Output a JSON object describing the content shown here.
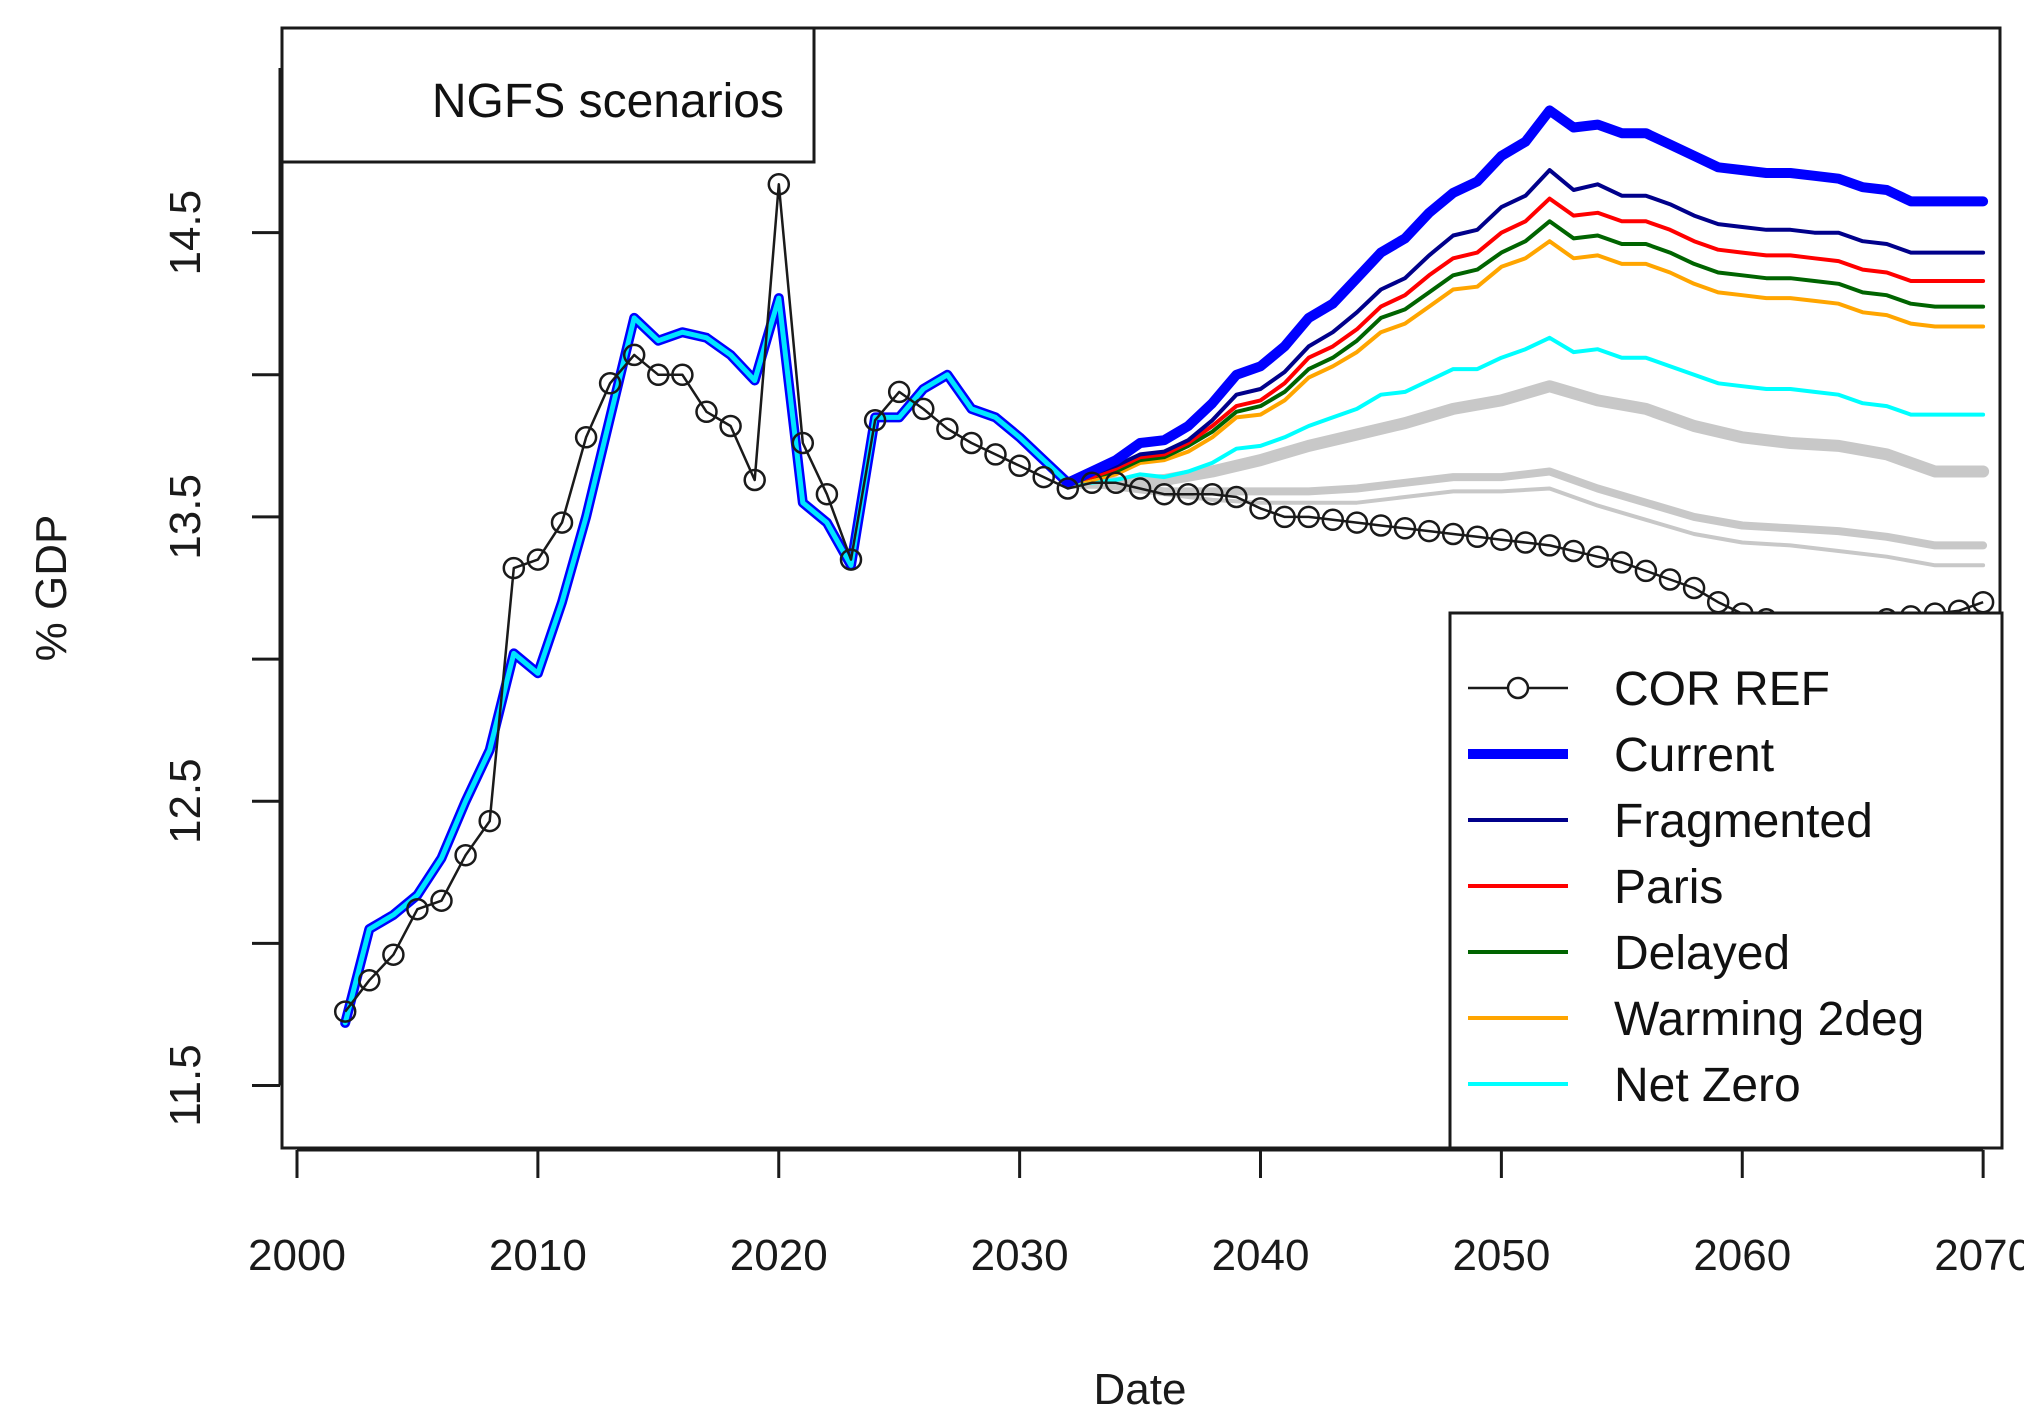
{
  "chart_data": {
    "type": "line",
    "title": "NGFS scenarios",
    "xlabel": "Date",
    "ylabel": "% GDP",
    "xlim": [
      2000,
      2070
    ],
    "ylim": [
      11.5,
      15.0
    ],
    "xticks": [
      2000,
      2010,
      2020,
      2030,
      2040,
      2050,
      2060,
      2070
    ],
    "yticks": [
      11.5,
      12.0,
      12.5,
      13.0,
      13.5,
      14.0,
      14.5
    ],
    "ytick_labels": [
      "11.5",
      "",
      "12.5",
      "",
      "13.5",
      "",
      "14.5"
    ],
    "grid": false,
    "legend_position": "bottom-right",
    "history": {
      "x": [
        2002,
        2003,
        2004,
        2005,
        2006,
        2007,
        2008,
        2009,
        2010,
        2011,
        2012,
        2013,
        2014,
        2015,
        2016,
        2017,
        2018,
        2019,
        2020,
        2021,
        2022,
        2023,
        2024,
        2025,
        2026,
        2027,
        2028,
        2029,
        2030,
        2031,
        2032
      ],
      "values": [
        11.72,
        12.05,
        12.1,
        12.17,
        12.3,
        12.5,
        12.68,
        13.02,
        12.95,
        13.2,
        13.5,
        13.85,
        14.2,
        14.12,
        14.15,
        14.13,
        14.07,
        13.98,
        14.27,
        13.55,
        13.48,
        13.33,
        13.85,
        13.85,
        13.95,
        14.0,
        13.88,
        13.85,
        13.78,
        13.7,
        13.62
      ]
    },
    "series": [
      {
        "name": "COR REF",
        "color": "#1a1a1a",
        "marker": "circle",
        "x": [
          2002,
          2003,
          2004,
          2005,
          2006,
          2007,
          2008,
          2009,
          2010,
          2011,
          2012,
          2013,
          2014,
          2015,
          2016,
          2017,
          2018,
          2019,
          2020,
          2021,
          2022,
          2023,
          2024,
          2025,
          2026,
          2027,
          2028,
          2029,
          2030,
          2031,
          2032,
          2033,
          2034,
          2035,
          2036,
          2037,
          2038,
          2039,
          2040,
          2041,
          2042,
          2043,
          2044,
          2045,
          2046,
          2047,
          2048,
          2049,
          2050,
          2051,
          2052,
          2053,
          2054,
          2055,
          2056,
          2057,
          2058,
          2059,
          2060,
          2061,
          2062,
          2063,
          2064,
          2065,
          2066,
          2067,
          2068,
          2069,
          2070
        ],
        "values": [
          11.76,
          11.87,
          11.96,
          12.12,
          12.15,
          12.31,
          12.43,
          13.32,
          13.35,
          13.48,
          13.78,
          13.97,
          14.07,
          14.0,
          14.0,
          13.87,
          13.82,
          13.63,
          14.67,
          13.76,
          13.58,
          13.35,
          13.84,
          13.94,
          13.88,
          13.81,
          13.76,
          13.72,
          13.68,
          13.64,
          13.6,
          13.62,
          13.62,
          13.6,
          13.58,
          13.58,
          13.58,
          13.57,
          13.53,
          13.5,
          13.5,
          13.49,
          13.48,
          13.47,
          13.46,
          13.45,
          13.44,
          13.43,
          13.42,
          13.41,
          13.4,
          13.38,
          13.36,
          13.34,
          13.31,
          13.28,
          13.25,
          13.2,
          13.16,
          13.14,
          13.12,
          13.11,
          13.11,
          13.12,
          13.14,
          13.15,
          13.16,
          13.17,
          13.2
        ]
      },
      {
        "name": "Current",
        "color": "#0000ff",
        "width": 10,
        "x": [
          2032,
          2033,
          2034,
          2035,
          2036,
          2037,
          2038,
          2039,
          2040,
          2041,
          2042,
          2043,
          2044,
          2045,
          2046,
          2047,
          2048,
          2049,
          2050,
          2051,
          2052,
          2053,
          2054,
          2055,
          2056,
          2057,
          2058,
          2059,
          2060,
          2061,
          2062,
          2063,
          2064,
          2065,
          2066,
          2067,
          2068,
          2069,
          2070
        ],
        "values": [
          13.62,
          13.66,
          13.7,
          13.76,
          13.77,
          13.82,
          13.9,
          14.0,
          14.03,
          14.1,
          14.2,
          14.25,
          14.34,
          14.43,
          14.48,
          14.57,
          14.64,
          14.68,
          14.77,
          14.82,
          14.93,
          14.87,
          14.88,
          14.85,
          14.85,
          14.81,
          14.77,
          14.73,
          14.72,
          14.71,
          14.71,
          14.7,
          14.69,
          14.66,
          14.65,
          14.61,
          14.61,
          14.61,
          14.61
        ]
      },
      {
        "name": "Fragmented",
        "color": "#00008b",
        "width": 4,
        "x": [
          2032,
          2033,
          2034,
          2035,
          2036,
          2037,
          2038,
          2039,
          2040,
          2041,
          2042,
          2043,
          2044,
          2045,
          2046,
          2047,
          2048,
          2049,
          2050,
          2051,
          2052,
          2053,
          2054,
          2055,
          2056,
          2057,
          2058,
          2059,
          2060,
          2061,
          2062,
          2063,
          2064,
          2065,
          2066,
          2067,
          2068,
          2069,
          2070
        ],
        "values": [
          13.62,
          13.65,
          13.68,
          13.72,
          13.73,
          13.77,
          13.84,
          13.93,
          13.95,
          14.01,
          14.1,
          14.15,
          14.22,
          14.3,
          14.34,
          14.42,
          14.49,
          14.51,
          14.59,
          14.63,
          14.72,
          14.65,
          14.67,
          14.63,
          14.63,
          14.6,
          14.56,
          14.53,
          14.52,
          14.51,
          14.51,
          14.5,
          14.5,
          14.47,
          14.46,
          14.43,
          14.43,
          14.43,
          14.43
        ]
      },
      {
        "name": "Paris",
        "color": "#ff0000",
        "width": 4,
        "x": [
          2032,
          2033,
          2034,
          2035,
          2036,
          2037,
          2038,
          2039,
          2040,
          2041,
          2042,
          2043,
          2044,
          2045,
          2046,
          2047,
          2048,
          2049,
          2050,
          2051,
          2052,
          2053,
          2054,
          2055,
          2056,
          2057,
          2058,
          2059,
          2060,
          2061,
          2062,
          2063,
          2064,
          2065,
          2066,
          2067,
          2068,
          2069,
          2070
        ],
        "values": [
          13.62,
          13.64,
          13.67,
          13.71,
          13.72,
          13.76,
          13.82,
          13.89,
          13.91,
          13.97,
          14.06,
          14.1,
          14.16,
          14.24,
          14.28,
          14.35,
          14.41,
          14.43,
          14.5,
          14.54,
          14.62,
          14.56,
          14.57,
          14.54,
          14.54,
          14.51,
          14.47,
          14.44,
          14.43,
          14.42,
          14.42,
          14.41,
          14.4,
          14.37,
          14.36,
          14.33,
          14.33,
          14.33,
          14.33
        ]
      },
      {
        "name": "Delayed",
        "color": "#006400",
        "width": 4,
        "x": [
          2032,
          2033,
          2034,
          2035,
          2036,
          2037,
          2038,
          2039,
          2040,
          2041,
          2042,
          2043,
          2044,
          2045,
          2046,
          2047,
          2048,
          2049,
          2050,
          2051,
          2052,
          2053,
          2054,
          2055,
          2056,
          2057,
          2058,
          2059,
          2060,
          2061,
          2062,
          2063,
          2064,
          2065,
          2066,
          2067,
          2068,
          2069,
          2070
        ],
        "values": [
          13.62,
          13.64,
          13.66,
          13.7,
          13.71,
          13.75,
          13.8,
          13.87,
          13.89,
          13.94,
          14.02,
          14.06,
          14.12,
          14.2,
          14.23,
          14.29,
          14.35,
          14.37,
          14.43,
          14.47,
          14.54,
          14.48,
          14.49,
          14.46,
          14.46,
          14.43,
          14.39,
          14.36,
          14.35,
          14.34,
          14.34,
          14.33,
          14.32,
          14.29,
          14.28,
          14.25,
          14.24,
          14.24,
          14.24
        ]
      },
      {
        "name": "Warming 2deg",
        "color": "#ffa500",
        "width": 4,
        "x": [
          2032,
          2033,
          2034,
          2035,
          2036,
          2037,
          2038,
          2039,
          2040,
          2041,
          2042,
          2043,
          2044,
          2045,
          2046,
          2047,
          2048,
          2049,
          2050,
          2051,
          2052,
          2053,
          2054,
          2055,
          2056,
          2057,
          2058,
          2059,
          2060,
          2061,
          2062,
          2063,
          2064,
          2065,
          2066,
          2067,
          2068,
          2069,
          2070
        ],
        "values": [
          13.62,
          13.63,
          13.65,
          13.69,
          13.7,
          13.73,
          13.78,
          13.85,
          13.86,
          13.91,
          13.99,
          14.03,
          14.08,
          14.15,
          14.18,
          14.24,
          14.3,
          14.31,
          14.38,
          14.41,
          14.47,
          14.41,
          14.42,
          14.39,
          14.39,
          14.36,
          14.32,
          14.29,
          14.28,
          14.27,
          14.27,
          14.26,
          14.25,
          14.22,
          14.21,
          14.18,
          14.17,
          14.17,
          14.17
        ]
      },
      {
        "name": "Net Zero",
        "color": "#00ffff",
        "width": 4,
        "x": [
          2032,
          2033,
          2034,
          2035,
          2036,
          2037,
          2038,
          2039,
          2040,
          2041,
          2042,
          2043,
          2044,
          2045,
          2046,
          2047,
          2048,
          2049,
          2050,
          2051,
          2052,
          2053,
          2054,
          2055,
          2056,
          2057,
          2058,
          2059,
          2060,
          2061,
          2062,
          2063,
          2064,
          2065,
          2066,
          2067,
          2068,
          2069,
          2070
        ],
        "values": [
          13.62,
          13.62,
          13.63,
          13.65,
          13.64,
          13.66,
          13.69,
          13.74,
          13.75,
          13.78,
          13.82,
          13.85,
          13.88,
          13.93,
          13.94,
          13.98,
          14.02,
          14.02,
          14.06,
          14.09,
          14.13,
          14.08,
          14.09,
          14.06,
          14.06,
          14.03,
          14.0,
          13.97,
          13.96,
          13.95,
          13.95,
          13.94,
          13.93,
          13.9,
          13.89,
          13.86,
          13.86,
          13.86,
          13.86
        ]
      }
    ],
    "gray_bands": [
      {
        "color": "#c8c8c8",
        "width": 12,
        "x": [
          2032,
          2034,
          2036,
          2038,
          2040,
          2042,
          2044,
          2046,
          2048,
          2050,
          2052,
          2054,
          2056,
          2058,
          2060,
          2062,
          2064,
          2066,
          2068,
          2070
        ],
        "values": [
          13.62,
          13.62,
          13.63,
          13.66,
          13.7,
          13.75,
          13.79,
          13.83,
          13.88,
          13.91,
          13.96,
          13.91,
          13.88,
          13.82,
          13.78,
          13.76,
          13.75,
          13.72,
          13.66,
          13.66
        ]
      },
      {
        "color": "#c8c8c8",
        "width": 8,
        "x": [
          2032,
          2034,
          2036,
          2038,
          2040,
          2042,
          2044,
          2046,
          2048,
          2050,
          2052,
          2054,
          2056,
          2058,
          2060,
          2062,
          2064,
          2066,
          2068,
          2070
        ],
        "values": [
          13.62,
          13.61,
          13.59,
          13.59,
          13.59,
          13.59,
          13.6,
          13.62,
          13.64,
          13.64,
          13.66,
          13.6,
          13.55,
          13.5,
          13.47,
          13.46,
          13.45,
          13.43,
          13.4,
          13.4
        ]
      },
      {
        "color": "#c8c8c8",
        "width": 4,
        "x": [
          2032,
          2034,
          2036,
          2038,
          2040,
          2042,
          2044,
          2046,
          2048,
          2050,
          2052,
          2054,
          2056,
          2058,
          2060,
          2062,
          2064,
          2066,
          2068,
          2070
        ],
        "values": [
          13.62,
          13.6,
          13.58,
          13.56,
          13.55,
          13.55,
          13.55,
          13.57,
          13.59,
          13.59,
          13.6,
          13.54,
          13.49,
          13.44,
          13.41,
          13.4,
          13.38,
          13.36,
          13.33,
          13.33
        ]
      }
    ]
  }
}
